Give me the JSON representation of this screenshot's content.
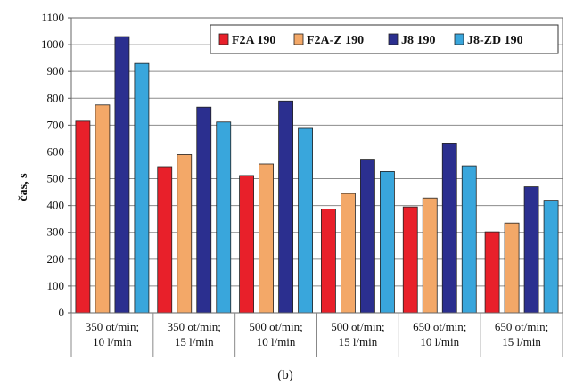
{
  "chart_data": {
    "type": "bar",
    "categories": [
      [
        "350 ot/min;",
        "10 l/min"
      ],
      [
        "350 ot/min;",
        "15 l/min"
      ],
      [
        "500 ot/min;",
        "10 l/min"
      ],
      [
        "500 ot/min;",
        "15 l/min"
      ],
      [
        "650 ot/min;",
        "10 l/min"
      ],
      [
        "650 ot/min;",
        "15 l/min"
      ]
    ],
    "series": [
      {
        "name": "F2A 190",
        "color": "#e8202a",
        "values": [
          715,
          545,
          512,
          387,
          395,
          302
        ]
      },
      {
        "name": "F2A-Z 190",
        "color": "#f3a868",
        "values": [
          775,
          590,
          555,
          445,
          428,
          335
        ]
      },
      {
        "name": "J8 190",
        "color": "#2b2f8f",
        "values": [
          1030,
          767,
          790,
          573,
          630,
          470
        ]
      },
      {
        "name": "J8-ZD 190",
        "color": "#39a6dc",
        "values": [
          930,
          712,
          688,
          527,
          548,
          420
        ]
      }
    ],
    "ylabel": "čas, s",
    "xlabel": "",
    "ylim": [
      0,
      1100
    ],
    "yticks": [
      0,
      100,
      200,
      300,
      400,
      500,
      600,
      700,
      800,
      900,
      1000,
      1100
    ],
    "grid": "horizontal",
    "legend": "top-right",
    "caption": "(b)"
  }
}
